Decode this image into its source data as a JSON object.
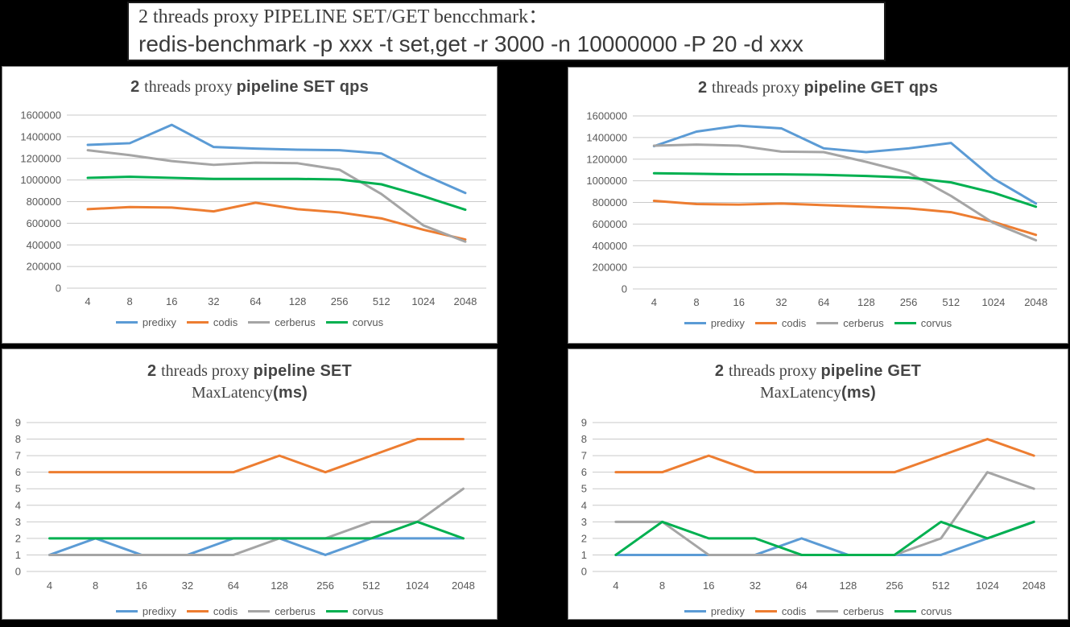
{
  "header": {
    "line1": "2 threads proxy PIPELINE SET/GET bencchmark：",
    "line2": "redis-benchmark -p xxx -t set,get -r 3000 -n 10000000 -P 20 -d xxx"
  },
  "colors": {
    "predixy": "#5B9BD5",
    "codis": "#ED7D31",
    "cerberus": "#A5A5A5",
    "corvus": "#00B050",
    "grid": "#C9C9C9",
    "axis_text": "#595959",
    "title_text": "#454545",
    "panel_bg": "#FFFFFF",
    "page_bg": "#000000"
  },
  "chart_data": [
    {
      "id": "set-qps",
      "type": "line",
      "panel": "top",
      "title": "2 threads proxy pipeline SET qps",
      "title_lines": [
        [
          {
            "text": "2 ",
            "font": "bold"
          },
          {
            "text": "threads proxy ",
            "font": "serif"
          },
          {
            "text": "pipeline SET qps",
            "font": "bold"
          }
        ]
      ],
      "categories": [
        "4",
        "8",
        "16",
        "32",
        "64",
        "128",
        "256",
        "512",
        "1024",
        "2048"
      ],
      "ylim": [
        0,
        1600000
      ],
      "ytick_step": 200000,
      "grid": true,
      "legend_position": "bottom",
      "series": [
        {
          "name": "predixy",
          "color": "#5B9BD5",
          "values": [
            1325000,
            1340000,
            1510000,
            1305000,
            1290000,
            1280000,
            1275000,
            1245000,
            1050000,
            880000
          ]
        },
        {
          "name": "codis",
          "color": "#ED7D31",
          "values": [
            730000,
            750000,
            745000,
            710000,
            790000,
            730000,
            700000,
            645000,
            540000,
            450000
          ]
        },
        {
          "name": "cerberus",
          "color": "#A5A5A5",
          "values": [
            1275000,
            1230000,
            1175000,
            1140000,
            1160000,
            1155000,
            1095000,
            870000,
            580000,
            430000
          ]
        },
        {
          "name": "corvus",
          "color": "#00B050",
          "values": [
            1020000,
            1030000,
            1020000,
            1010000,
            1010000,
            1010000,
            1005000,
            960000,
            850000,
            725000
          ]
        }
      ]
    },
    {
      "id": "get-qps",
      "type": "line",
      "panel": "top",
      "title": "2 threads proxy pipeline GET qps",
      "title_lines": [
        [
          {
            "text": "2 ",
            "font": "bold"
          },
          {
            "text": "threads proxy ",
            "font": "serif"
          },
          {
            "text": "pipeline GET qps",
            "font": "bold"
          }
        ]
      ],
      "categories": [
        "4",
        "8",
        "16",
        "32",
        "64",
        "128",
        "256",
        "512",
        "1024",
        "2048"
      ],
      "ylim": [
        0,
        1600000
      ],
      "ytick_step": 200000,
      "grid": true,
      "legend_position": "bottom",
      "series": [
        {
          "name": "predixy",
          "color": "#5B9BD5",
          "values": [
            1320000,
            1455000,
            1510000,
            1485000,
            1300000,
            1265000,
            1300000,
            1350000,
            1020000,
            790000
          ]
        },
        {
          "name": "codis",
          "color": "#ED7D31",
          "values": [
            815000,
            785000,
            780000,
            790000,
            775000,
            760000,
            745000,
            710000,
            620000,
            500000
          ]
        },
        {
          "name": "cerberus",
          "color": "#A5A5A5",
          "values": [
            1325000,
            1335000,
            1325000,
            1270000,
            1265000,
            1175000,
            1075000,
            860000,
            610000,
            450000
          ]
        },
        {
          "name": "corvus",
          "color": "#00B050",
          "values": [
            1070000,
            1065000,
            1060000,
            1060000,
            1055000,
            1045000,
            1030000,
            985000,
            890000,
            760000
          ]
        }
      ]
    },
    {
      "id": "set-maxlatency",
      "type": "line",
      "panel": "bottom",
      "title": "2 threads proxy pipeline SET MaxLatency(ms)",
      "title_lines": [
        [
          {
            "text": "2 ",
            "font": "bold"
          },
          {
            "text": "threads proxy ",
            "font": "serif"
          },
          {
            "text": "pipeline SET",
            "font": "bold"
          }
        ],
        [
          {
            "text": "MaxLatency",
            "font": "serif"
          },
          {
            "text": "(ms)",
            "font": "bold"
          }
        ]
      ],
      "categories": [
        "4",
        "8",
        "16",
        "32",
        "64",
        "128",
        "256",
        "512",
        "1024",
        "2048"
      ],
      "ylim": [
        0,
        9
      ],
      "ytick_step": 1,
      "grid": true,
      "legend_position": "bottom",
      "series": [
        {
          "name": "predixy",
          "color": "#5B9BD5",
          "values": [
            1,
            2,
            1,
            1,
            2,
            2,
            1,
            2,
            2,
            2
          ]
        },
        {
          "name": "codis",
          "color": "#ED7D31",
          "values": [
            6,
            6,
            6,
            6,
            6,
            7,
            6,
            7,
            8,
            8
          ]
        },
        {
          "name": "cerberus",
          "color": "#A5A5A5",
          "values": [
            1,
            1,
            1,
            1,
            1,
            2,
            2,
            3,
            3,
            5
          ]
        },
        {
          "name": "corvus",
          "color": "#00B050",
          "values": [
            2,
            2,
            2,
            2,
            2,
            2,
            2,
            2,
            3,
            2
          ]
        }
      ]
    },
    {
      "id": "get-maxlatency",
      "type": "line",
      "panel": "bottom",
      "title": "2 threads proxy pipeline GET MaxLatency(ms)",
      "title_lines": [
        [
          {
            "text": "2 ",
            "font": "bold"
          },
          {
            "text": "threads proxy ",
            "font": "serif"
          },
          {
            "text": "pipeline GET",
            "font": "bold"
          }
        ],
        [
          {
            "text": "MaxLatency",
            "font": "serif"
          },
          {
            "text": "(ms)",
            "font": "bold"
          }
        ]
      ],
      "categories": [
        "4",
        "8",
        "16",
        "32",
        "64",
        "128",
        "256",
        "512",
        "1024",
        "2048"
      ],
      "ylim": [
        0,
        9
      ],
      "ytick_step": 1,
      "grid": true,
      "legend_position": "bottom",
      "series": [
        {
          "name": "predixy",
          "color": "#5B9BD5",
          "values": [
            1,
            1,
            1,
            1,
            2,
            1,
            1,
            1,
            2,
            3
          ]
        },
        {
          "name": "codis",
          "color": "#ED7D31",
          "values": [
            6,
            6,
            7,
            6,
            6,
            6,
            6,
            7,
            8,
            7
          ]
        },
        {
          "name": "cerberus",
          "color": "#A5A5A5",
          "values": [
            3,
            3,
            1,
            1,
            1,
            1,
            1,
            2,
            6,
            5
          ]
        },
        {
          "name": "corvus",
          "color": "#00B050",
          "values": [
            1,
            3,
            2,
            2,
            1,
            1,
            1,
            3,
            2,
            3
          ]
        }
      ]
    }
  ]
}
